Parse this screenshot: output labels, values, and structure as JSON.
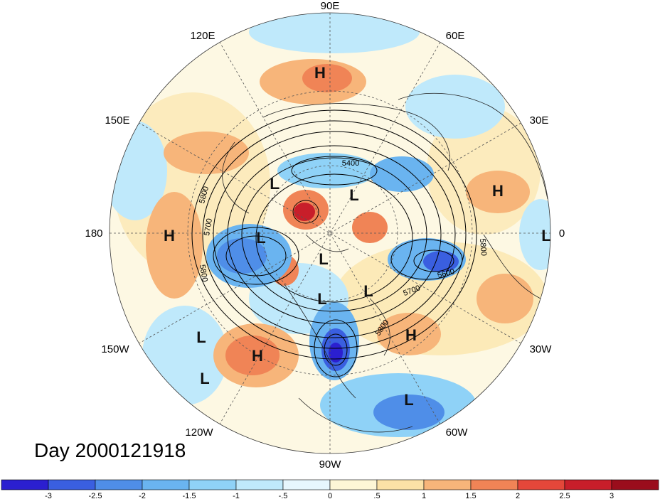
{
  "title": "Day 2000121918",
  "projection": "north-polar-stereographic",
  "longitude_labels": [
    "90E",
    "60E",
    "30E",
    "0",
    "30W",
    "60W",
    "90W",
    "120W",
    "150W",
    "180",
    "150E",
    "120E"
  ],
  "centers": [
    {
      "type": "H",
      "lon_label": "90E"
    },
    {
      "type": "H",
      "lon_label": "30E"
    },
    {
      "type": "H",
      "lon_label": "180"
    },
    {
      "type": "H",
      "lon_label": "150W"
    },
    {
      "type": "H",
      "lon_label": "30W"
    },
    {
      "type": "L",
      "lon_label": "0"
    },
    {
      "type": "L",
      "lon_label": "150W"
    },
    {
      "type": "L",
      "lon_label": "150W"
    },
    {
      "type": "L",
      "lon_label": "60W"
    },
    {
      "type": "L",
      "lon_label": "pole"
    },
    {
      "type": "L",
      "lon_label": "pole"
    },
    {
      "type": "L",
      "lon_label": "pole"
    },
    {
      "type": "L",
      "lon_label": "pole"
    },
    {
      "type": "L",
      "lon_label": "pole"
    },
    {
      "type": "L",
      "lon_label": "pole"
    }
  ],
  "contour_labels": [
    "5400",
    "5800",
    "5700",
    "5800",
    "5800",
    "5600",
    "5700",
    "5800"
  ],
  "colorbar": {
    "ticks": [
      "-3",
      "-2.5",
      "-2",
      "-1.5",
      "-1",
      "-.5",
      "0",
      ".5",
      "1",
      "1.5",
      "2",
      "2.5",
      "3"
    ],
    "colors": [
      "#2b1fd0",
      "#3a5fe0",
      "#4f8ee8",
      "#6ab4f0",
      "#8fd2f7",
      "#bfe9fb",
      "#e6f6fd",
      "#fdf6d6",
      "#fbe1a6",
      "#f7b57a",
      "#f08456",
      "#e4473a",
      "#c81e2a",
      "#9a0d1c"
    ]
  },
  "style": {
    "contour_color": "#000000",
    "grid_color": "#555555"
  }
}
